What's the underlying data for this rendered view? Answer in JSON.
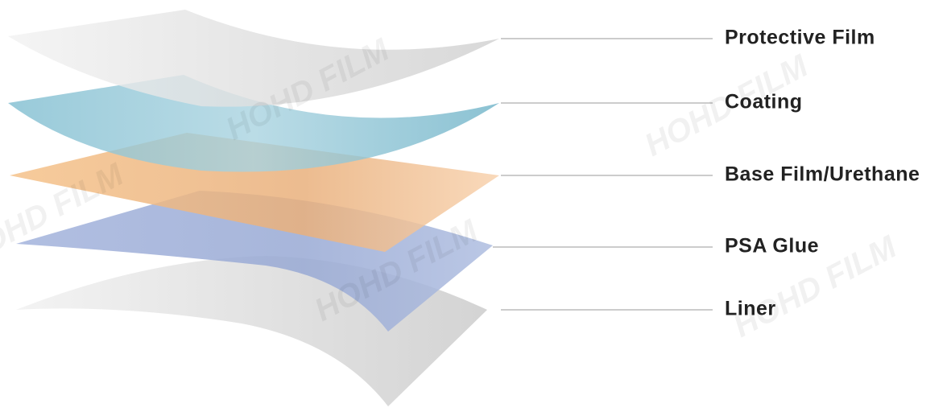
{
  "layers": [
    {
      "label": "Protective Film"
    },
    {
      "label": "Coating"
    },
    {
      "label": "Base Film/Urethane"
    },
    {
      "label": "PSA Glue"
    },
    {
      "label": "Liner"
    }
  ],
  "watermark": "HOHD FILM"
}
